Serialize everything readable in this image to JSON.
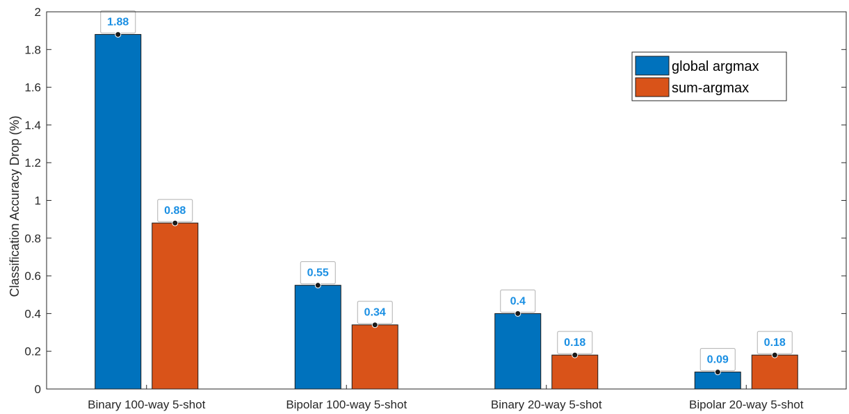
{
  "chart_data": {
    "type": "bar",
    "categories": [
      "Binary 100-way 5-shot",
      "Bipolar 100-way 5-shot",
      "Binary 20-way 5-shot",
      "Bipolar 20-way 5-shot"
    ],
    "series": [
      {
        "name": "global argmax",
        "values": [
          1.88,
          0.55,
          0.4,
          0.09
        ],
        "color": "#0072bd"
      },
      {
        "name": "sum-argmax",
        "values": [
          0.88,
          0.34,
          0.18,
          0.18
        ],
        "color": "#d95319"
      }
    ],
    "data_labels": [
      [
        "1.88",
        "0.55",
        "0.4",
        "0.09"
      ],
      [
        "0.88",
        "0.34",
        "0.18",
        "0.18"
      ]
    ],
    "ylabel": "Classification Accuracy Drop (%)",
    "ylim": [
      0,
      2
    ],
    "yticks": [
      "0",
      "0.2",
      "0.4",
      "0.6",
      "0.8",
      "1",
      "1.2",
      "1.4",
      "1.6",
      "1.8",
      "2"
    ],
    "legend_position": "top-right",
    "grid": false
  }
}
